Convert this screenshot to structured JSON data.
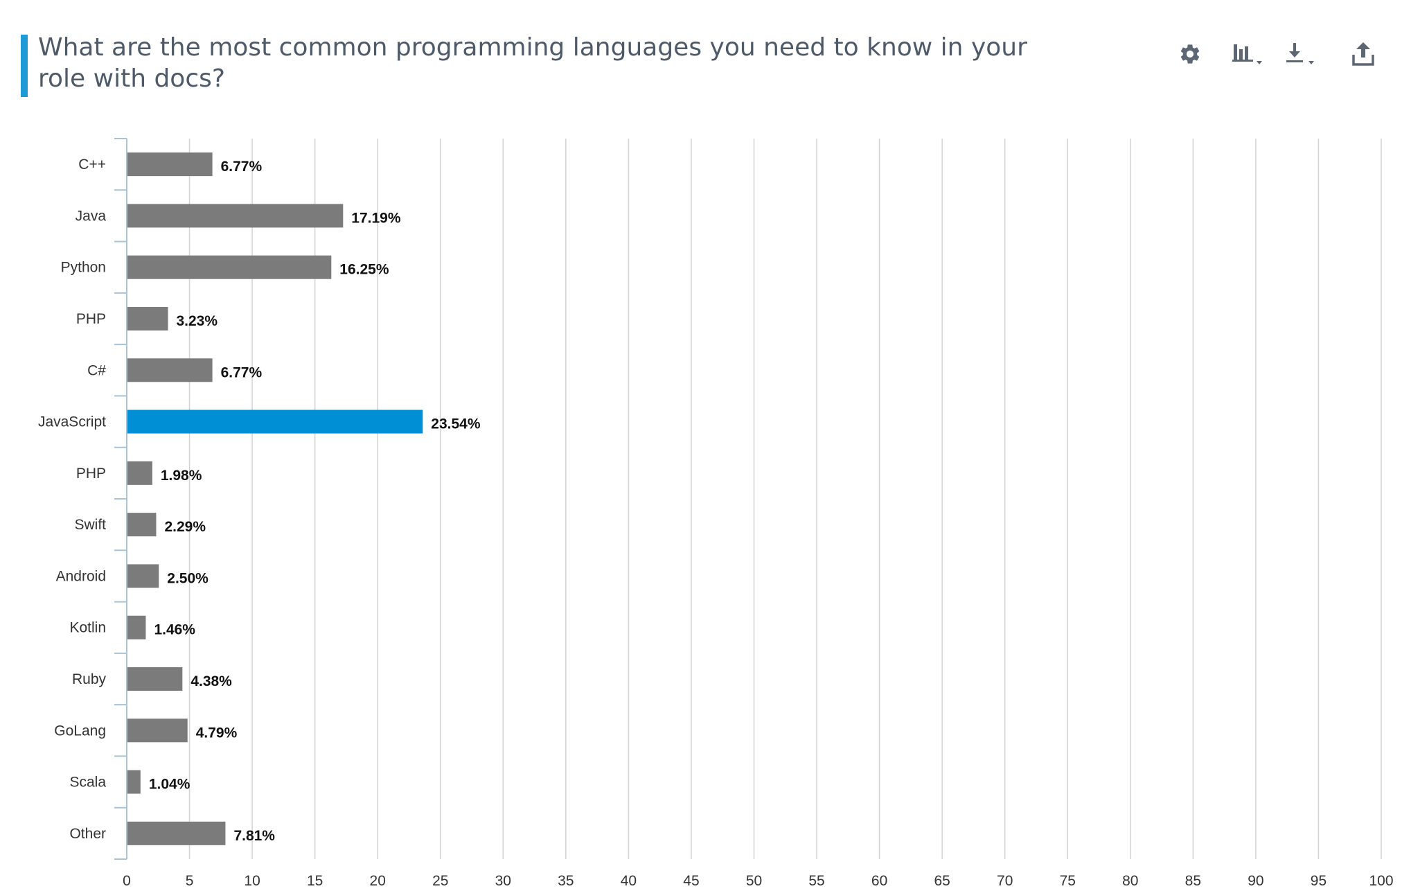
{
  "header": {
    "title": "What are the most common programming languages you need to know in your role with docs?"
  },
  "toolbar": {
    "icons": [
      "gear-icon",
      "chart-type-icon",
      "download-icon",
      "share-icon"
    ]
  },
  "colors": {
    "accent": "#1e9bd7",
    "bar_default": "#7b7b7b",
    "bar_highlight": "#008fd5",
    "gridline": "#d3d3d3",
    "axis": "#a9c3d6"
  },
  "chart_data": {
    "type": "bar",
    "orientation": "horizontal",
    "title": "What are the most common programming languages you need to know in your role with docs?",
    "xlabel": "",
    "ylabel": "",
    "xlim": [
      0,
      100
    ],
    "x_ticks": [
      0,
      5,
      10,
      15,
      20,
      25,
      30,
      35,
      40,
      45,
      50,
      55,
      60,
      65,
      70,
      75,
      80,
      85,
      90,
      95,
      100
    ],
    "grid": true,
    "legend": "none",
    "categories": [
      "C++",
      "Java",
      "Python",
      "PHP",
      "C#",
      "JavaScript",
      "PHP",
      "Swift",
      "Android",
      "Kotlin",
      "Ruby",
      "GoLang",
      "Scala",
      "Other"
    ],
    "values": [
      6.77,
      17.19,
      16.25,
      3.23,
      6.77,
      23.54,
      1.98,
      2.29,
      2.5,
      1.46,
      4.38,
      4.79,
      1.04,
      7.81
    ],
    "value_labels": [
      "6.77%",
      "17.19%",
      "16.25%",
      "3.23%",
      "6.77%",
      "23.54%",
      "1.98%",
      "2.29%",
      "2.50%",
      "1.46%",
      "4.38%",
      "4.79%",
      "1.04%",
      "7.81%"
    ],
    "highlighted_category": "JavaScript"
  }
}
